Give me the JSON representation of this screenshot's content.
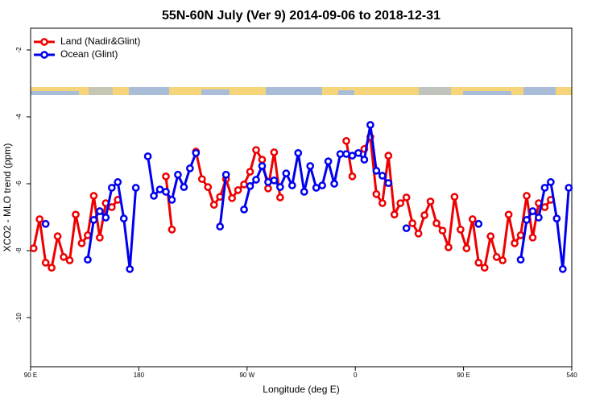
{
  "chart_data": {
    "type": "line",
    "title": "55N-60N July (Ver 9)   2014-09-06 to 2018-12-31",
    "xlabel": "Longitude (deg E)",
    "ylabel": "XCO2 - MLO trend (ppm)",
    "xlim": [
      90,
      540
    ],
    "ylim": [
      -11.47,
      -1.35
    ],
    "xticks": [
      {
        "value": 90,
        "label": "90 E"
      },
      180,
      {
        "value": 270,
        "label": "90 W"
      },
      {
        "value": 360,
        "label": "0"
      },
      {
        "value": 450,
        "label": "90 E"
      },
      540
    ],
    "yticks": [
      -2,
      -4,
      -6,
      -8,
      -10
    ],
    "legend": "top-left",
    "x": [
      92.5,
      97.5,
      102.5,
      107.5,
      112.5,
      117.5,
      122.5,
      127.5,
      132.5,
      137.5,
      142.5,
      147.5,
      152.5,
      157.5,
      162.5,
      167.5,
      172.5,
      177.5,
      182.5,
      187.5,
      192.5,
      197.5,
      202.5,
      207.5,
      212.5,
      217.5,
      222.5,
      227.5,
      232.5,
      237.5,
      242.5,
      247.5,
      252.5,
      257.5,
      262.5,
      267.5,
      272.5,
      277.5,
      282.5,
      287.5,
      292.5,
      297.5,
      302.5,
      307.5,
      312.5,
      317.5,
      322.5,
      327.5,
      332.5,
      337.5,
      342.5,
      347.5,
      352.5,
      357.5,
      362.5,
      367.5,
      372.5,
      377.5,
      382.5,
      387.5,
      392.5,
      397.5,
      402.5,
      407.5,
      412.5,
      417.5,
      422.5,
      427.5,
      432.5,
      437.5,
      442.5,
      447.5,
      452.5,
      457.5,
      462.5,
      467.5,
      472.5,
      477.5,
      482.5,
      487.5,
      492.5,
      497.5,
      502.5,
      507.5,
      512.5,
      517.5,
      522.5,
      527.5,
      532.5,
      537.5
    ],
    "series": [
      {
        "name": "Land (Nadir&Glint)",
        "color": "#ee0000",
        "values": [
          -7.93,
          -7.06,
          -8.36,
          -8.51,
          -7.57,
          -8.19,
          -8.29,
          -6.92,
          -7.78,
          -7.54,
          -6.36,
          -7.61,
          -6.58,
          -6.7,
          -6.48,
          null,
          null,
          null,
          null,
          null,
          null,
          null,
          -5.78,
          -7.37,
          null,
          null,
          null,
          -5.04,
          -5.86,
          -6.1,
          -6.63,
          -6.39,
          -5.86,
          -6.43,
          -6.19,
          -6.02,
          -5.64,
          -4.99,
          -5.28,
          -6.14,
          -5.06,
          -6.41,
          null,
          null,
          null,
          null,
          null,
          null,
          null,
          null,
          null,
          null,
          -4.72,
          -5.78,
          null,
          -4.96,
          -4.6,
          -6.31,
          -6.58,
          -5.16,
          -6.92,
          -6.58,
          -6.41,
          -7.18,
          -7.49,
          -6.94,
          -6.53,
          -7.18,
          -7.4,
          -7.9,
          -6.39,
          -7.37,
          -7.93,
          -7.06,
          -8.36,
          -8.51,
          -7.57,
          -8.19,
          -8.29,
          -6.92,
          -7.78,
          -7.54,
          -6.36,
          -7.61,
          -6.58,
          -6.7,
          -6.48,
          null,
          null,
          null
        ]
      },
      {
        "name": "Ocean (Glint)",
        "color": "#0000ee",
        "values": [
          null,
          null,
          -7.2,
          null,
          null,
          null,
          null,
          null,
          null,
          -8.27,
          -7.08,
          -6.82,
          -7.01,
          -6.12,
          -5.95,
          -7.04,
          -8.55,
          -6.12,
          null,
          -5.18,
          -6.36,
          -6.17,
          -6.24,
          -6.48,
          -5.73,
          -6.1,
          -5.54,
          -5.08,
          null,
          null,
          null,
          -7.28,
          -5.73,
          null,
          null,
          -6.77,
          -6.07,
          -5.88,
          -5.47,
          -5.95,
          -5.9,
          -6.1,
          -5.69,
          -6.05,
          -5.08,
          -6.24,
          -5.47,
          -6.12,
          -6.05,
          -5.33,
          -6.0,
          -5.11,
          -5.11,
          -5.16,
          -5.08,
          -5.28,
          -4.24,
          -5.61,
          -5.76,
          -5.98,
          null,
          null,
          -7.33,
          null,
          null,
          null,
          null,
          null,
          null,
          null,
          null,
          null,
          null,
          null,
          -7.2,
          null,
          null,
          null,
          null,
          null,
          null,
          -8.27,
          -7.08,
          -6.82,
          -7.01,
          -6.12,
          -5.95,
          -7.04,
          -8.55,
          -6.12
        ]
      }
    ]
  }
}
